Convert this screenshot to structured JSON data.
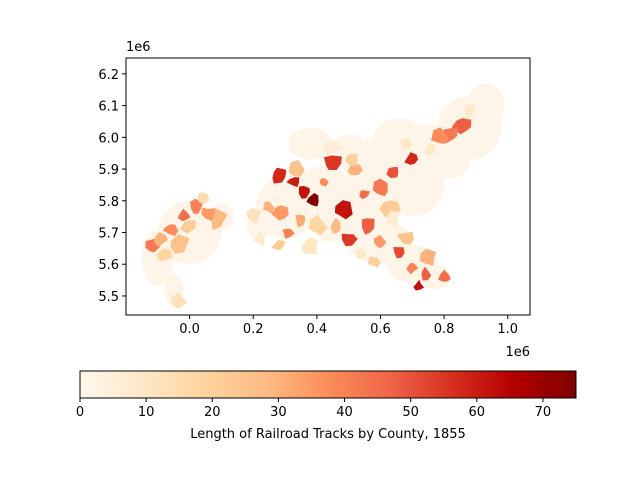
{
  "chart_data": {
    "type": "choropleth",
    "map": {
      "x_ticks": [
        "0.0",
        "0.2",
        "0.4",
        "0.6",
        "0.8",
        "1.0"
      ],
      "y_ticks": [
        "5.5",
        "5.6",
        "5.7",
        "5.8",
        "5.9",
        "6.0",
        "6.1",
        "6.2"
      ],
      "x_offset_label": "1e6",
      "y_offset_label": "1e6",
      "xlim": [
        -0.2,
        1.07
      ],
      "ylim": [
        5.44,
        6.25
      ]
    },
    "colorbar": {
      "label": "Length of Railroad Tracks by County, 1855",
      "ticks": [
        "0",
        "10",
        "20",
        "30",
        "40",
        "50",
        "60",
        "70"
      ],
      "range": [
        0,
        75
      ],
      "colormap": "OrRd",
      "colors": [
        "#fff7ec",
        "#fee8c8",
        "#fdd49e",
        "#fdbb84",
        "#fc8d59",
        "#ef6548",
        "#d7301f",
        "#b30000",
        "#7f0000"
      ]
    },
    "regions": [
      {
        "x": 0.39,
        "y": 5.8,
        "value": 75
      },
      {
        "x": 0.33,
        "y": 5.86,
        "value": 60
      },
      {
        "x": 0.36,
        "y": 5.83,
        "value": 62
      },
      {
        "x": 0.28,
        "y": 5.88,
        "value": 58
      },
      {
        "x": 0.45,
        "y": 5.92,
        "value": 55
      },
      {
        "x": 0.48,
        "y": 5.77,
        "value": 62
      },
      {
        "x": 0.72,
        "y": 5.53,
        "value": 62
      },
      {
        "x": 0.74,
        "y": 5.57,
        "value": 48
      },
      {
        "x": 0.7,
        "y": 5.93,
        "value": 58
      },
      {
        "x": 0.64,
        "y": 5.89,
        "value": 50
      },
      {
        "x": 0.55,
        "y": 5.82,
        "value": 45
      },
      {
        "x": 0.6,
        "y": 5.84,
        "value": 42
      },
      {
        "x": 0.5,
        "y": 5.68,
        "value": 55
      },
      {
        "x": 0.56,
        "y": 5.72,
        "value": 48
      },
      {
        "x": 0.66,
        "y": 5.64,
        "value": 52
      },
      {
        "x": 0.7,
        "y": 5.59,
        "value": 40
      },
      {
        "x": 0.8,
        "y": 5.56,
        "value": 45
      },
      {
        "x": 0.86,
        "y": 6.04,
        "value": 48
      },
      {
        "x": 0.82,
        "y": 6.01,
        "value": 42
      },
      {
        "x": 0.79,
        "y": 6.0,
        "value": 38
      },
      {
        "x": 0.29,
        "y": 5.76,
        "value": 35
      },
      {
        "x": 0.31,
        "y": 5.7,
        "value": 40
      },
      {
        "x": 0.25,
        "y": 5.78,
        "value": 30
      },
      {
        "x": 0.35,
        "y": 5.74,
        "value": 32
      },
      {
        "x": 0.42,
        "y": 5.86,
        "value": 38
      },
      {
        "x": 0.52,
        "y": 5.9,
        "value": 30
      },
      {
        "x": 0.46,
        "y": 5.72,
        "value": 28
      },
      {
        "x": 0.6,
        "y": 5.67,
        "value": 35
      },
      {
        "x": 0.63,
        "y": 5.78,
        "value": 22
      },
      {
        "x": 0.68,
        "y": 5.68,
        "value": 25
      },
      {
        "x": 0.58,
        "y": 5.61,
        "value": 20
      },
      {
        "x": 0.75,
        "y": 5.62,
        "value": 30
      },
      {
        "x": 0.4,
        "y": 5.72,
        "value": 18
      },
      {
        "x": 0.28,
        "y": 5.66,
        "value": 22
      },
      {
        "x": 0.34,
        "y": 5.9,
        "value": 25
      },
      {
        "x": 0.51,
        "y": 5.93,
        "value": 20
      },
      {
        "x": -0.02,
        "y": 5.75,
        "value": 45
      },
      {
        "x": 0.02,
        "y": 5.78,
        "value": 40
      },
      {
        "x": 0.06,
        "y": 5.76,
        "value": 35
      },
      {
        "x": 0.09,
        "y": 5.74,
        "value": 28
      },
      {
        "x": -0.06,
        "y": 5.71,
        "value": 38
      },
      {
        "x": -0.12,
        "y": 5.66,
        "value": 42
      },
      {
        "x": -0.09,
        "y": 5.68,
        "value": 30
      },
      {
        "x": -0.03,
        "y": 5.66,
        "value": 25
      },
      {
        "x": 0.0,
        "y": 5.72,
        "value": 22
      },
      {
        "x": -0.08,
        "y": 5.63,
        "value": 18
      },
      {
        "x": 0.04,
        "y": 5.81,
        "value": 15
      },
      {
        "x": -0.04,
        "y": 5.48,
        "value": 12
      },
      {
        "x": 0.68,
        "y": 5.98,
        "value": 10
      },
      {
        "x": 0.88,
        "y": 6.08,
        "value": 8
      },
      {
        "x": 0.45,
        "y": 5.97,
        "value": 6
      },
      {
        "x": 0.22,
        "y": 5.68,
        "value": 8
      },
      {
        "x": 0.2,
        "y": 5.75,
        "value": 12
      },
      {
        "x": 0.38,
        "y": 5.66,
        "value": 10
      },
      {
        "x": 0.54,
        "y": 5.63,
        "value": 9
      },
      {
        "x": 0.64,
        "y": 5.74,
        "value": 7
      },
      {
        "x": 0.76,
        "y": 5.96,
        "value": 9
      }
    ]
  }
}
